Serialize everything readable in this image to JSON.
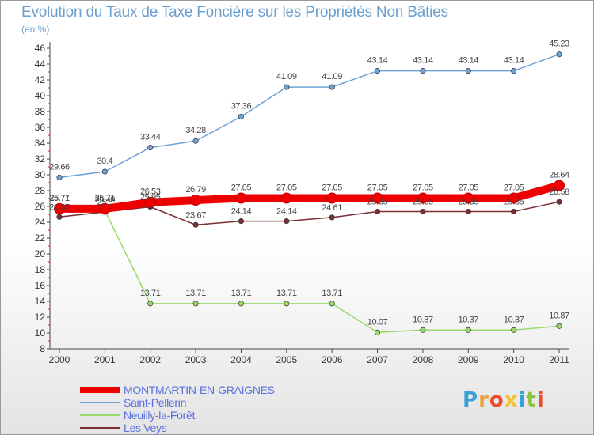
{
  "header": {
    "title": "Evolution du Taux de Taxe Foncière sur les Propriétés Non Bâties",
    "unit": "(en %)"
  },
  "logo": {
    "letters": [
      "P",
      "r",
      "o",
      "x",
      "i",
      "t",
      "i"
    ],
    "colors": [
      "#3aa0d8",
      "#f2a23a",
      "#e94e2e",
      "#f2c230",
      "#3aa0d8",
      "#8bc43f",
      "#e94e2e"
    ]
  },
  "chart_data": {
    "type": "line",
    "title": "Evolution du Taux de Taxe Foncière sur les Propriétés Non Bâties",
    "ylabel": "(en %)",
    "xlabel": "",
    "x": [
      "2000",
      "2001",
      "2002",
      "2003",
      "2004",
      "2005",
      "2006",
      "2007",
      "2008",
      "2009",
      "2010",
      "2011"
    ],
    "ylim": [
      8,
      46
    ],
    "yticks": [
      8,
      10,
      12,
      14,
      16,
      18,
      20,
      22,
      24,
      26,
      28,
      30,
      32,
      34,
      36,
      38,
      40,
      42,
      44,
      46
    ],
    "grid": false,
    "legend": "bottom-left",
    "series": [
      {
        "name": "MONTMARTIN-EN-GRAIGNES",
        "color": "#ee0000",
        "values": [
          25.71,
          25.71,
          26.53,
          26.79,
          27.05,
          27.05,
          27.05,
          27.05,
          27.05,
          27.05,
          27.05,
          28.64
        ],
        "labels": [
          "25.71",
          "25.71",
          "26.53",
          "26.79",
          "27.05",
          "27.05",
          "27.05",
          "27.05",
          "27.05",
          "27.05",
          "27.05",
          "28.64"
        ]
      },
      {
        "name": "Saint-Pellerin",
        "color": "#6fa3d6",
        "values": [
          29.66,
          30.4,
          33.44,
          34.28,
          37.36,
          41.09,
          41.09,
          43.14,
          43.14,
          43.14,
          43.14,
          45.23
        ],
        "labels": [
          "29.66",
          "30.4",
          "33.44",
          "34.28",
          "37.36",
          "41.09",
          "41.09",
          "43.14",
          "43.14",
          "43.14",
          "43.14",
          "45.23"
        ]
      },
      {
        "name": "Neuilly-la-Forêt",
        "color": "#99d86a",
        "values": [
          25.77,
          25.49,
          13.71,
          13.71,
          13.71,
          13.71,
          13.71,
          10.07,
          10.37,
          10.37,
          10.37,
          10.87
        ],
        "labels": [
          "25.77",
          "25.49",
          "13.71",
          "13.71",
          "13.71",
          "13.71",
          "13.71",
          "10.07",
          "10.37",
          "10.37",
          "10.37",
          "10.87"
        ]
      },
      {
        "name": "Les Veys",
        "color": "#7a2e33",
        "values": [
          24.67,
          25.3,
          25.95,
          23.67,
          24.14,
          24.14,
          24.61,
          25.35,
          25.35,
          25.35,
          25.35,
          26.58
        ],
        "labels": [
          "24.67",
          "25.3",
          "25.95",
          "23.67",
          "24.14",
          "24.14",
          "24.61",
          "25.35",
          "25.35",
          "25.35",
          "25.35",
          "26.58"
        ]
      }
    ]
  }
}
